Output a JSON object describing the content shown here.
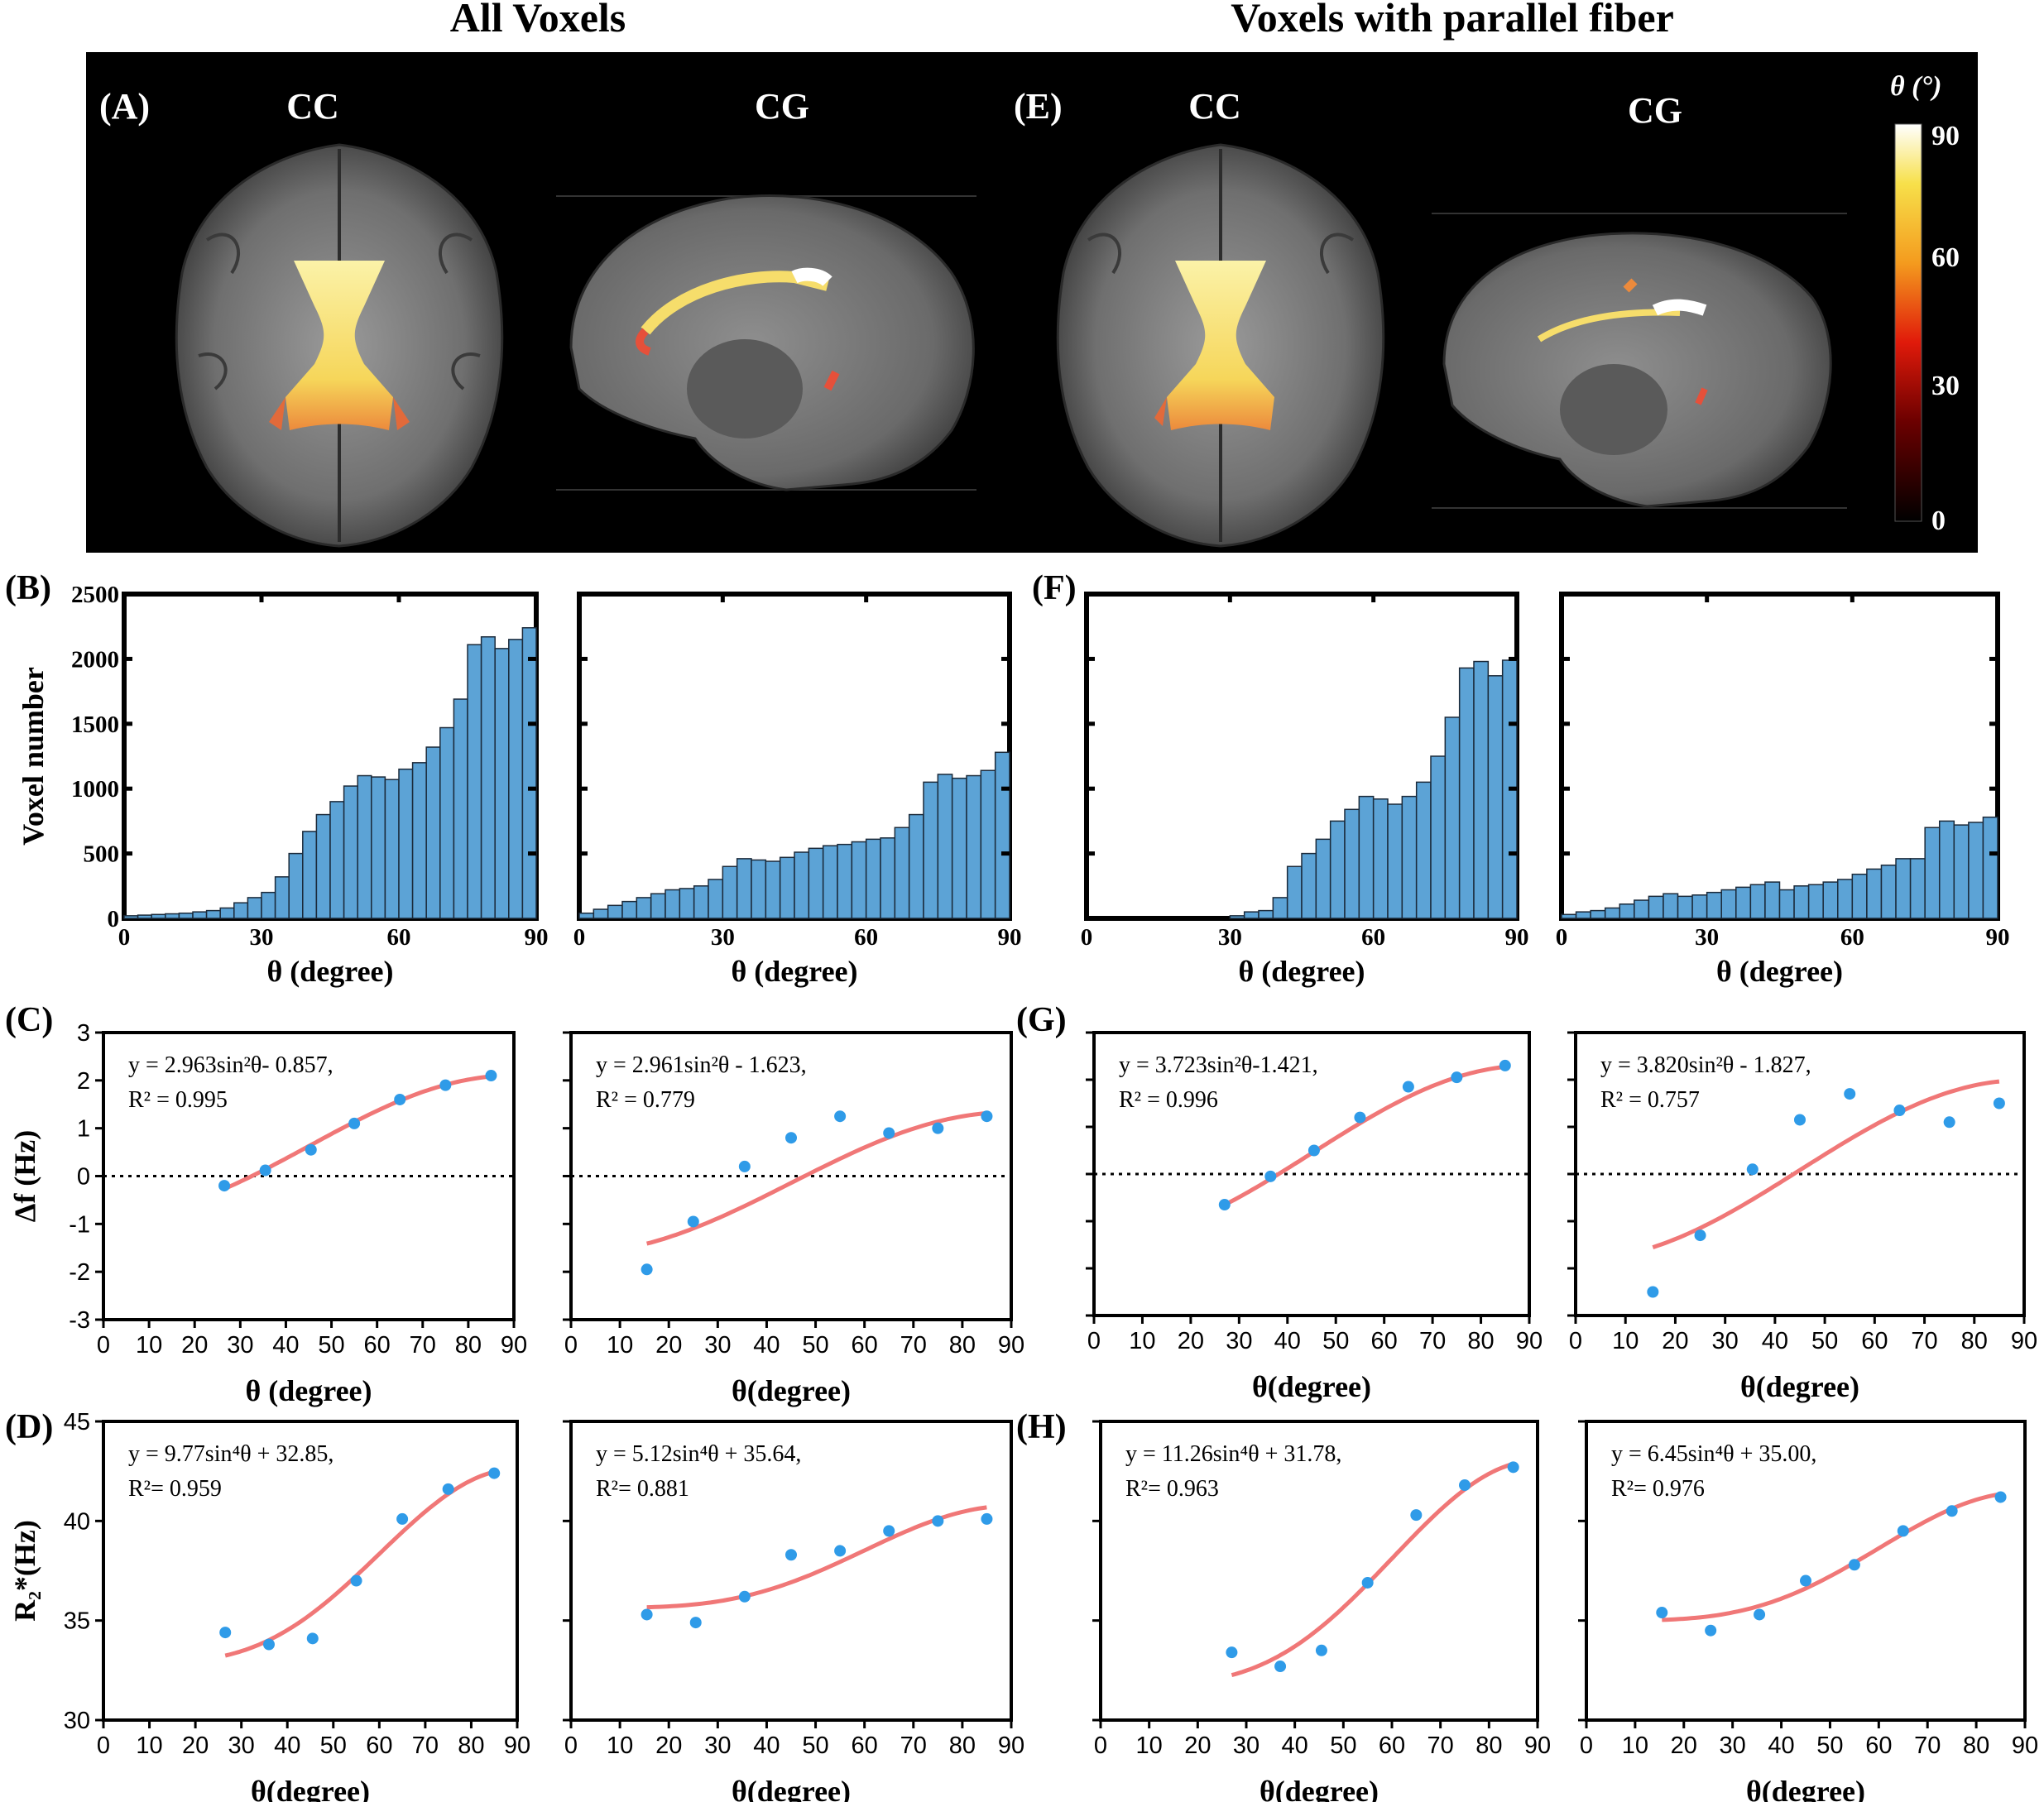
{
  "figure": {
    "title_left": "All Voxels",
    "title_right": "Voxels with parallel fiber",
    "panel_labels": [
      "(A)",
      "(B)",
      "(C)",
      "(D)",
      "(E)",
      "(F)",
      "(G)",
      "(H)"
    ],
    "region_labels": [
      "CC",
      "CG",
      "CC",
      "CG"
    ],
    "colorbar": {
      "title": "θ (°)",
      "ticks": [
        "90",
        "60",
        "30",
        "0"
      ]
    },
    "colors": {
      "bar_fill": "#5ca3d6",
      "point": "#2f9be8",
      "fit_line": "#f07777",
      "background_black": "#000000"
    }
  },
  "chart_data": [
    {
      "id": "B-CC",
      "type": "bar",
      "categories": [
        1.5,
        4.5,
        7.5,
        10.5,
        13.5,
        16.5,
        19.5,
        22.5,
        25.5,
        28.5,
        31.5,
        34.5,
        37.5,
        40.5,
        43.5,
        46.5,
        49.5,
        52.5,
        55.5,
        58.5,
        61.5,
        64.5,
        67.5,
        70.5,
        73.5,
        76.5,
        79.5,
        82.5,
        85.5,
        88.5
      ],
      "values": [
        20,
        25,
        30,
        35,
        40,
        50,
        60,
        80,
        120,
        160,
        200,
        320,
        500,
        670,
        800,
        900,
        1020,
        1100,
        1090,
        1070,
        1150,
        1200,
        1320,
        1470,
        1690,
        2110,
        2170,
        2080,
        2150,
        2240
      ],
      "title": "",
      "xlabel": "θ (degree)",
      "ylabel": "Voxel number",
      "xlim": [
        0,
        90
      ],
      "ylim": [
        0,
        2500
      ],
      "x_ticks": [
        0,
        30,
        60,
        90
      ],
      "y_ticks": [
        0,
        500,
        1000,
        1500,
        2000,
        2500
      ]
    },
    {
      "id": "B-CG",
      "type": "bar",
      "categories": [
        1.5,
        4.5,
        7.5,
        10.5,
        13.5,
        16.5,
        19.5,
        22.5,
        25.5,
        28.5,
        31.5,
        34.5,
        37.5,
        40.5,
        43.5,
        46.5,
        49.5,
        52.5,
        55.5,
        58.5,
        61.5,
        64.5,
        67.5,
        70.5,
        73.5,
        76.5,
        79.5,
        82.5,
        85.5,
        88.5
      ],
      "values": [
        40,
        70,
        100,
        130,
        160,
        190,
        220,
        230,
        250,
        300,
        400,
        460,
        450,
        440,
        470,
        510,
        540,
        560,
        570,
        590,
        610,
        620,
        700,
        800,
        1050,
        1110,
        1080,
        1100,
        1140,
        1280
      ],
      "title": "",
      "xlabel": "θ (degree)",
      "ylabel": "",
      "xlim": [
        0,
        90
      ],
      "ylim": [
        0,
        2500
      ],
      "x_ticks": [
        0,
        30,
        60,
        90
      ]
    },
    {
      "id": "F-CC",
      "type": "bar",
      "categories": [
        1.5,
        4.5,
        7.5,
        10.5,
        13.5,
        16.5,
        19.5,
        22.5,
        25.5,
        28.5,
        31.5,
        34.5,
        37.5,
        40.5,
        43.5,
        46.5,
        49.5,
        52.5,
        55.5,
        58.5,
        61.5,
        64.5,
        67.5,
        70.5,
        73.5,
        76.5,
        79.5,
        82.5,
        85.5,
        88.5
      ],
      "values": [
        0,
        0,
        0,
        0,
        0,
        0,
        0,
        0,
        0,
        0,
        20,
        50,
        60,
        160,
        400,
        500,
        610,
        750,
        840,
        940,
        920,
        880,
        940,
        1050,
        1250,
        1550,
        1930,
        1980,
        1870,
        1990
      ],
      "title": "",
      "xlabel": "θ (degree)",
      "ylabel": "",
      "xlim": [
        0,
        90
      ],
      "ylim": [
        0,
        2500
      ],
      "x_ticks": [
        0,
        30,
        60,
        90
      ]
    },
    {
      "id": "F-CG",
      "type": "bar",
      "categories": [
        1.5,
        4.5,
        7.5,
        10.5,
        13.5,
        16.5,
        19.5,
        22.5,
        25.5,
        28.5,
        31.5,
        34.5,
        37.5,
        40.5,
        43.5,
        46.5,
        49.5,
        52.5,
        55.5,
        58.5,
        61.5,
        64.5,
        67.5,
        70.5,
        73.5,
        76.5,
        79.5,
        82.5,
        85.5,
        88.5
      ],
      "values": [
        30,
        50,
        60,
        80,
        110,
        140,
        170,
        190,
        170,
        180,
        200,
        220,
        240,
        260,
        280,
        220,
        250,
        260,
        280,
        300,
        340,
        380,
        410,
        460,
        460,
        700,
        750,
        720,
        740,
        780
      ],
      "title": "",
      "xlabel": "θ (degree)",
      "ylabel": "",
      "xlim": [
        0,
        90
      ],
      "ylim": [
        0,
        2500
      ],
      "x_ticks": [
        0,
        30,
        60,
        90
      ]
    },
    {
      "id": "C-CC",
      "type": "scatter",
      "x": [
        26.5,
        35.5,
        45.5,
        55,
        65,
        75,
        85
      ],
      "y": [
        -0.2,
        0.12,
        0.55,
        1.1,
        1.6,
        1.9,
        2.1
      ],
      "fit": {
        "a": 2.963,
        "b": -0.857,
        "power": 2,
        "x_range": [
          26.5,
          85
        ]
      },
      "equation": "y = 2.963sin²θ- 0.857,",
      "r2": "R² = 0.995",
      "xlabel": "θ (degree)",
      "ylabel": "Δf (Hz)",
      "xlim": [
        0,
        90
      ],
      "ylim": [
        -3,
        3
      ],
      "x_ticks": [
        0,
        10,
        20,
        30,
        40,
        50,
        60,
        70,
        80,
        90
      ],
      "y_ticks": [
        -3,
        -2,
        -1,
        0,
        1,
        2,
        3
      ],
      "zero_line": true
    },
    {
      "id": "C-CG",
      "type": "scatter",
      "x": [
        15.5,
        25,
        35.5,
        45,
        55,
        65,
        75,
        85
      ],
      "y": [
        -1.95,
        -0.95,
        0.2,
        0.8,
        1.25,
        0.9,
        1.0,
        1.25
      ],
      "fit": {
        "a": 2.961,
        "b": -1.623,
        "power": 2,
        "x_range": [
          15.5,
          85
        ]
      },
      "equation": "y = 2.961sin²θ - 1.623,",
      "r2": "R² = 0.779",
      "xlabel": "θ(degree)",
      "ylabel": "",
      "xlim": [
        0,
        90
      ],
      "ylim": [
        -3,
        3
      ],
      "x_ticks": [
        0,
        10,
        20,
        30,
        40,
        50,
        60,
        70,
        80,
        90
      ],
      "zero_line": true
    },
    {
      "id": "G-CC",
      "type": "scatter",
      "x": [
        27,
        36.5,
        45.5,
        55,
        65,
        75,
        85
      ],
      "y": [
        -0.65,
        -0.05,
        0.5,
        1.2,
        1.85,
        2.05,
        2.3
      ],
      "fit": {
        "a": 3.723,
        "b": -1.421,
        "power": 2,
        "x_range": [
          27,
          85
        ]
      },
      "equation": "y = 3.723sin²θ-1.421,",
      "r2": "R² = 0.996",
      "xlabel": "θ(degree)",
      "ylabel": "",
      "xlim": [
        0,
        90
      ],
      "ylim": [
        -3,
        3
      ],
      "x_ticks": [
        0,
        10,
        20,
        30,
        40,
        50,
        60,
        70,
        80,
        90
      ],
      "zero_line": true
    },
    {
      "id": "G-CG",
      "type": "scatter",
      "x": [
        15.5,
        25,
        35.5,
        45,
        55,
        65,
        75,
        85
      ],
      "y": [
        -2.5,
        -1.3,
        0.1,
        1.15,
        1.7,
        1.35,
        1.1,
        1.5
      ],
      "fit": {
        "a": 3.82,
        "b": -1.827,
        "power": 2,
        "x_range": [
          15.5,
          85
        ]
      },
      "equation": "y = 3.820sin²θ - 1.827,",
      "r2": "R² = 0.757",
      "xlabel": "θ(degree)",
      "ylabel": "",
      "xlim": [
        0,
        90
      ],
      "ylim": [
        -3,
        3
      ],
      "x_ticks": [
        0,
        10,
        20,
        30,
        40,
        50,
        60,
        70,
        80,
        90
      ],
      "zero_line": true
    },
    {
      "id": "D-CC",
      "type": "scatter",
      "x": [
        26.5,
        36,
        45.5,
        55,
        65,
        75,
        85
      ],
      "y": [
        34.4,
        33.8,
        34.1,
        37.0,
        40.1,
        41.6,
        42.4
      ],
      "fit": {
        "a": 9.77,
        "b": 32.85,
        "power": 4,
        "x_range": [
          26.5,
          85
        ]
      },
      "equation": "y = 9.77sin⁴θ + 32.85,",
      "r2": "R²= 0.959",
      "xlabel": "θ(degree)",
      "ylabel": "R₂*(Hz)",
      "xlim": [
        0,
        90
      ],
      "ylim": [
        30,
        45
      ],
      "x_ticks": [
        0,
        10,
        20,
        30,
        40,
        50,
        60,
        70,
        80,
        90
      ],
      "y_ticks": [
        30,
        35,
        40,
        45
      ]
    },
    {
      "id": "D-CG",
      "type": "scatter",
      "x": [
        15.5,
        25.5,
        35.5,
        45,
        55,
        65,
        75,
        85
      ],
      "y": [
        35.3,
        34.9,
        36.2,
        38.3,
        38.5,
        39.5,
        40.0,
        40.1
      ],
      "fit": {
        "a": 5.12,
        "b": 35.64,
        "power": 4,
        "x_range": [
          15.5,
          85
        ]
      },
      "equation": "y = 5.12sin⁴θ + 35.64,",
      "r2": "R²= 0.881",
      "xlabel": "θ(degree)",
      "ylabel": "",
      "xlim": [
        0,
        90
      ],
      "ylim": [
        30,
        45
      ],
      "x_ticks": [
        0,
        10,
        20,
        30,
        40,
        50,
        60,
        70,
        80,
        90
      ]
    },
    {
      "id": "H-CC",
      "type": "scatter",
      "x": [
        27,
        37,
        45.5,
        55,
        65,
        75,
        85
      ],
      "y": [
        33.4,
        32.7,
        33.5,
        36.9,
        40.3,
        41.8,
        42.7
      ],
      "fit": {
        "a": 11.26,
        "b": 31.78,
        "power": 4,
        "x_range": [
          27,
          85
        ]
      },
      "equation": "y = 11.26sin⁴θ + 31.78,",
      "r2": "R²= 0.963",
      "xlabel": "θ(degree)",
      "ylabel": "",
      "xlim": [
        0,
        90
      ],
      "ylim": [
        30,
        45
      ],
      "x_ticks": [
        0,
        10,
        20,
        30,
        40,
        50,
        60,
        70,
        80,
        90
      ]
    },
    {
      "id": "H-CG",
      "type": "scatter",
      "x": [
        15.5,
        25.5,
        35.5,
        45,
        55,
        65,
        75,
        85
      ],
      "y": [
        35.4,
        34.5,
        35.3,
        37.0,
        37.8,
        39.5,
        40.5,
        41.2
      ],
      "fit": {
        "a": 6.45,
        "b": 35.0,
        "power": 4,
        "x_range": [
          15.5,
          85
        ]
      },
      "equation": "y = 6.45sin⁴θ + 35.00,",
      "r2": "R²= 0.976",
      "xlabel": "θ(degree)",
      "ylabel": "",
      "xlim": [
        0,
        90
      ],
      "ylim": [
        30,
        45
      ],
      "x_ticks": [
        0,
        10,
        20,
        30,
        40,
        50,
        60,
        70,
        80,
        90
      ]
    }
  ]
}
